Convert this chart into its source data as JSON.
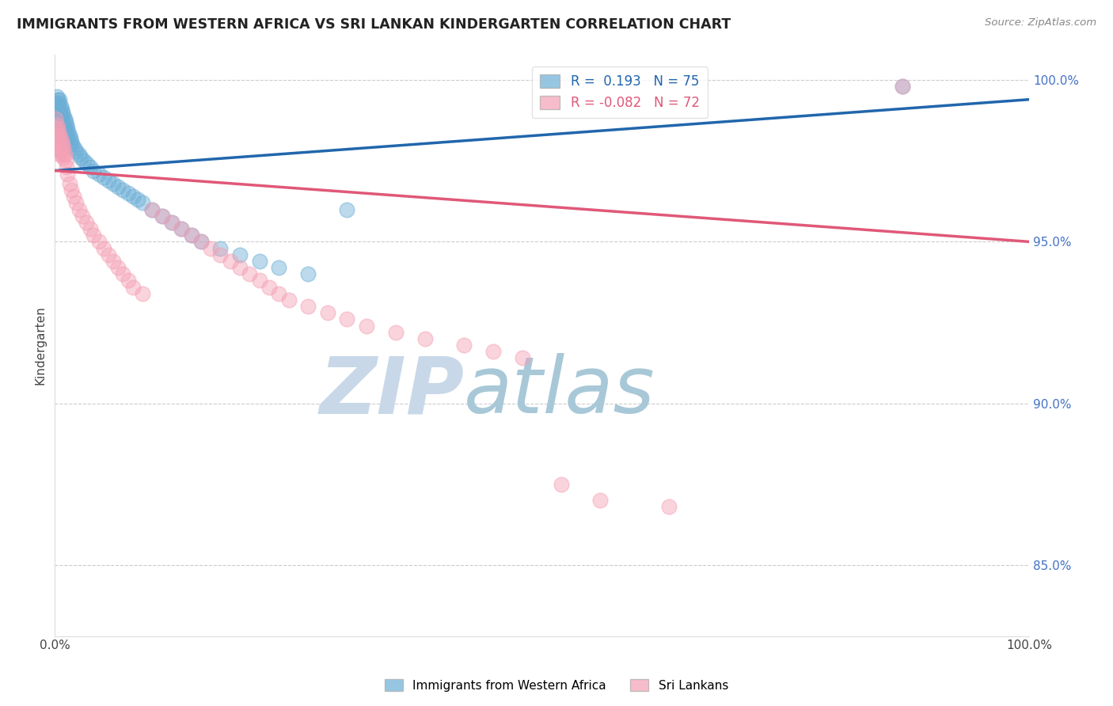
{
  "title": "IMMIGRANTS FROM WESTERN AFRICA VS SRI LANKAN KINDERGARTEN CORRELATION CHART",
  "source": "Source: ZipAtlas.com",
  "ylabel": "Kindergarten",
  "right_yticks": [
    "100.0%",
    "95.0%",
    "90.0%",
    "85.0%"
  ],
  "right_ytick_vals": [
    1.0,
    0.95,
    0.9,
    0.85
  ],
  "legend_blue_r": "0.193",
  "legend_blue_n": "75",
  "legend_pink_r": "-0.082",
  "legend_pink_n": "72",
  "legend_blue_label": "Immigrants from Western Africa",
  "legend_pink_label": "Sri Lankans",
  "blue_color": "#6baed6",
  "pink_color": "#f4a0b5",
  "blue_line_color": "#2166ac",
  "pink_line_color": "#e05878",
  "watermark_zip_color": "#c8d8e8",
  "watermark_atlas_color": "#a8c8d8",
  "background_color": "#ffffff",
  "xlim": [
    0.0,
    1.0
  ],
  "ylim": [
    0.828,
    1.008
  ],
  "blue_trend_x0": 0.0,
  "blue_trend_y0": 0.972,
  "blue_trend_x1": 1.0,
  "blue_trend_y1": 0.994,
  "pink_trend_x0": 0.0,
  "pink_trend_y0": 0.972,
  "pink_trend_x1": 1.0,
  "pink_trend_y1": 0.95,
  "blue_x": [
    0.001,
    0.001,
    0.001,
    0.002,
    0.002,
    0.002,
    0.002,
    0.003,
    0.003,
    0.003,
    0.003,
    0.004,
    0.004,
    0.004,
    0.005,
    0.005,
    0.005,
    0.005,
    0.006,
    0.006,
    0.006,
    0.007,
    0.007,
    0.007,
    0.008,
    0.008,
    0.008,
    0.009,
    0.009,
    0.01,
    0.01,
    0.01,
    0.011,
    0.011,
    0.012,
    0.012,
    0.013,
    0.013,
    0.014,
    0.015,
    0.015,
    0.016,
    0.017,
    0.018,
    0.02,
    0.022,
    0.025,
    0.027,
    0.03,
    0.033,
    0.036,
    0.04,
    0.045,
    0.05,
    0.055,
    0.06,
    0.065,
    0.07,
    0.075,
    0.08,
    0.085,
    0.09,
    0.1,
    0.11,
    0.12,
    0.13,
    0.14,
    0.15,
    0.17,
    0.19,
    0.21,
    0.23,
    0.26,
    0.3,
    0.87
  ],
  "blue_y": [
    0.993,
    0.99,
    0.987,
    0.995,
    0.992,
    0.989,
    0.986,
    0.994,
    0.991,
    0.988,
    0.985,
    0.993,
    0.99,
    0.987,
    0.994,
    0.991,
    0.988,
    0.985,
    0.992,
    0.989,
    0.986,
    0.991,
    0.988,
    0.985,
    0.99,
    0.987,
    0.984,
    0.989,
    0.986,
    0.988,
    0.985,
    0.982,
    0.987,
    0.984,
    0.986,
    0.983,
    0.985,
    0.982,
    0.984,
    0.983,
    0.98,
    0.982,
    0.981,
    0.98,
    0.979,
    0.978,
    0.977,
    0.976,
    0.975,
    0.974,
    0.973,
    0.972,
    0.971,
    0.97,
    0.969,
    0.968,
    0.967,
    0.966,
    0.965,
    0.964,
    0.963,
    0.962,
    0.96,
    0.958,
    0.956,
    0.954,
    0.952,
    0.95,
    0.948,
    0.946,
    0.944,
    0.942,
    0.94,
    0.96,
    0.998
  ],
  "pink_x": [
    0.001,
    0.001,
    0.002,
    0.002,
    0.002,
    0.003,
    0.003,
    0.003,
    0.004,
    0.004,
    0.004,
    0.005,
    0.005,
    0.005,
    0.006,
    0.006,
    0.007,
    0.007,
    0.008,
    0.008,
    0.009,
    0.009,
    0.01,
    0.011,
    0.012,
    0.013,
    0.015,
    0.017,
    0.019,
    0.022,
    0.025,
    0.028,
    0.032,
    0.036,
    0.04,
    0.045,
    0.05,
    0.055,
    0.06,
    0.065,
    0.07,
    0.075,
    0.08,
    0.09,
    0.1,
    0.11,
    0.12,
    0.13,
    0.14,
    0.15,
    0.16,
    0.17,
    0.18,
    0.19,
    0.2,
    0.21,
    0.22,
    0.23,
    0.24,
    0.26,
    0.28,
    0.3,
    0.32,
    0.35,
    0.38,
    0.42,
    0.45,
    0.48,
    0.52,
    0.56,
    0.63,
    0.87
  ],
  "pink_y": [
    0.988,
    0.985,
    0.986,
    0.983,
    0.98,
    0.985,
    0.982,
    0.979,
    0.984,
    0.981,
    0.978,
    0.983,
    0.98,
    0.977,
    0.982,
    0.979,
    0.981,
    0.978,
    0.98,
    0.977,
    0.979,
    0.976,
    0.977,
    0.975,
    0.973,
    0.971,
    0.968,
    0.966,
    0.964,
    0.962,
    0.96,
    0.958,
    0.956,
    0.954,
    0.952,
    0.95,
    0.948,
    0.946,
    0.944,
    0.942,
    0.94,
    0.938,
    0.936,
    0.934,
    0.96,
    0.958,
    0.956,
    0.954,
    0.952,
    0.95,
    0.948,
    0.946,
    0.944,
    0.942,
    0.94,
    0.938,
    0.936,
    0.934,
    0.932,
    0.93,
    0.928,
    0.926,
    0.924,
    0.922,
    0.92,
    0.918,
    0.916,
    0.914,
    0.875,
    0.87,
    0.868,
    0.998
  ]
}
